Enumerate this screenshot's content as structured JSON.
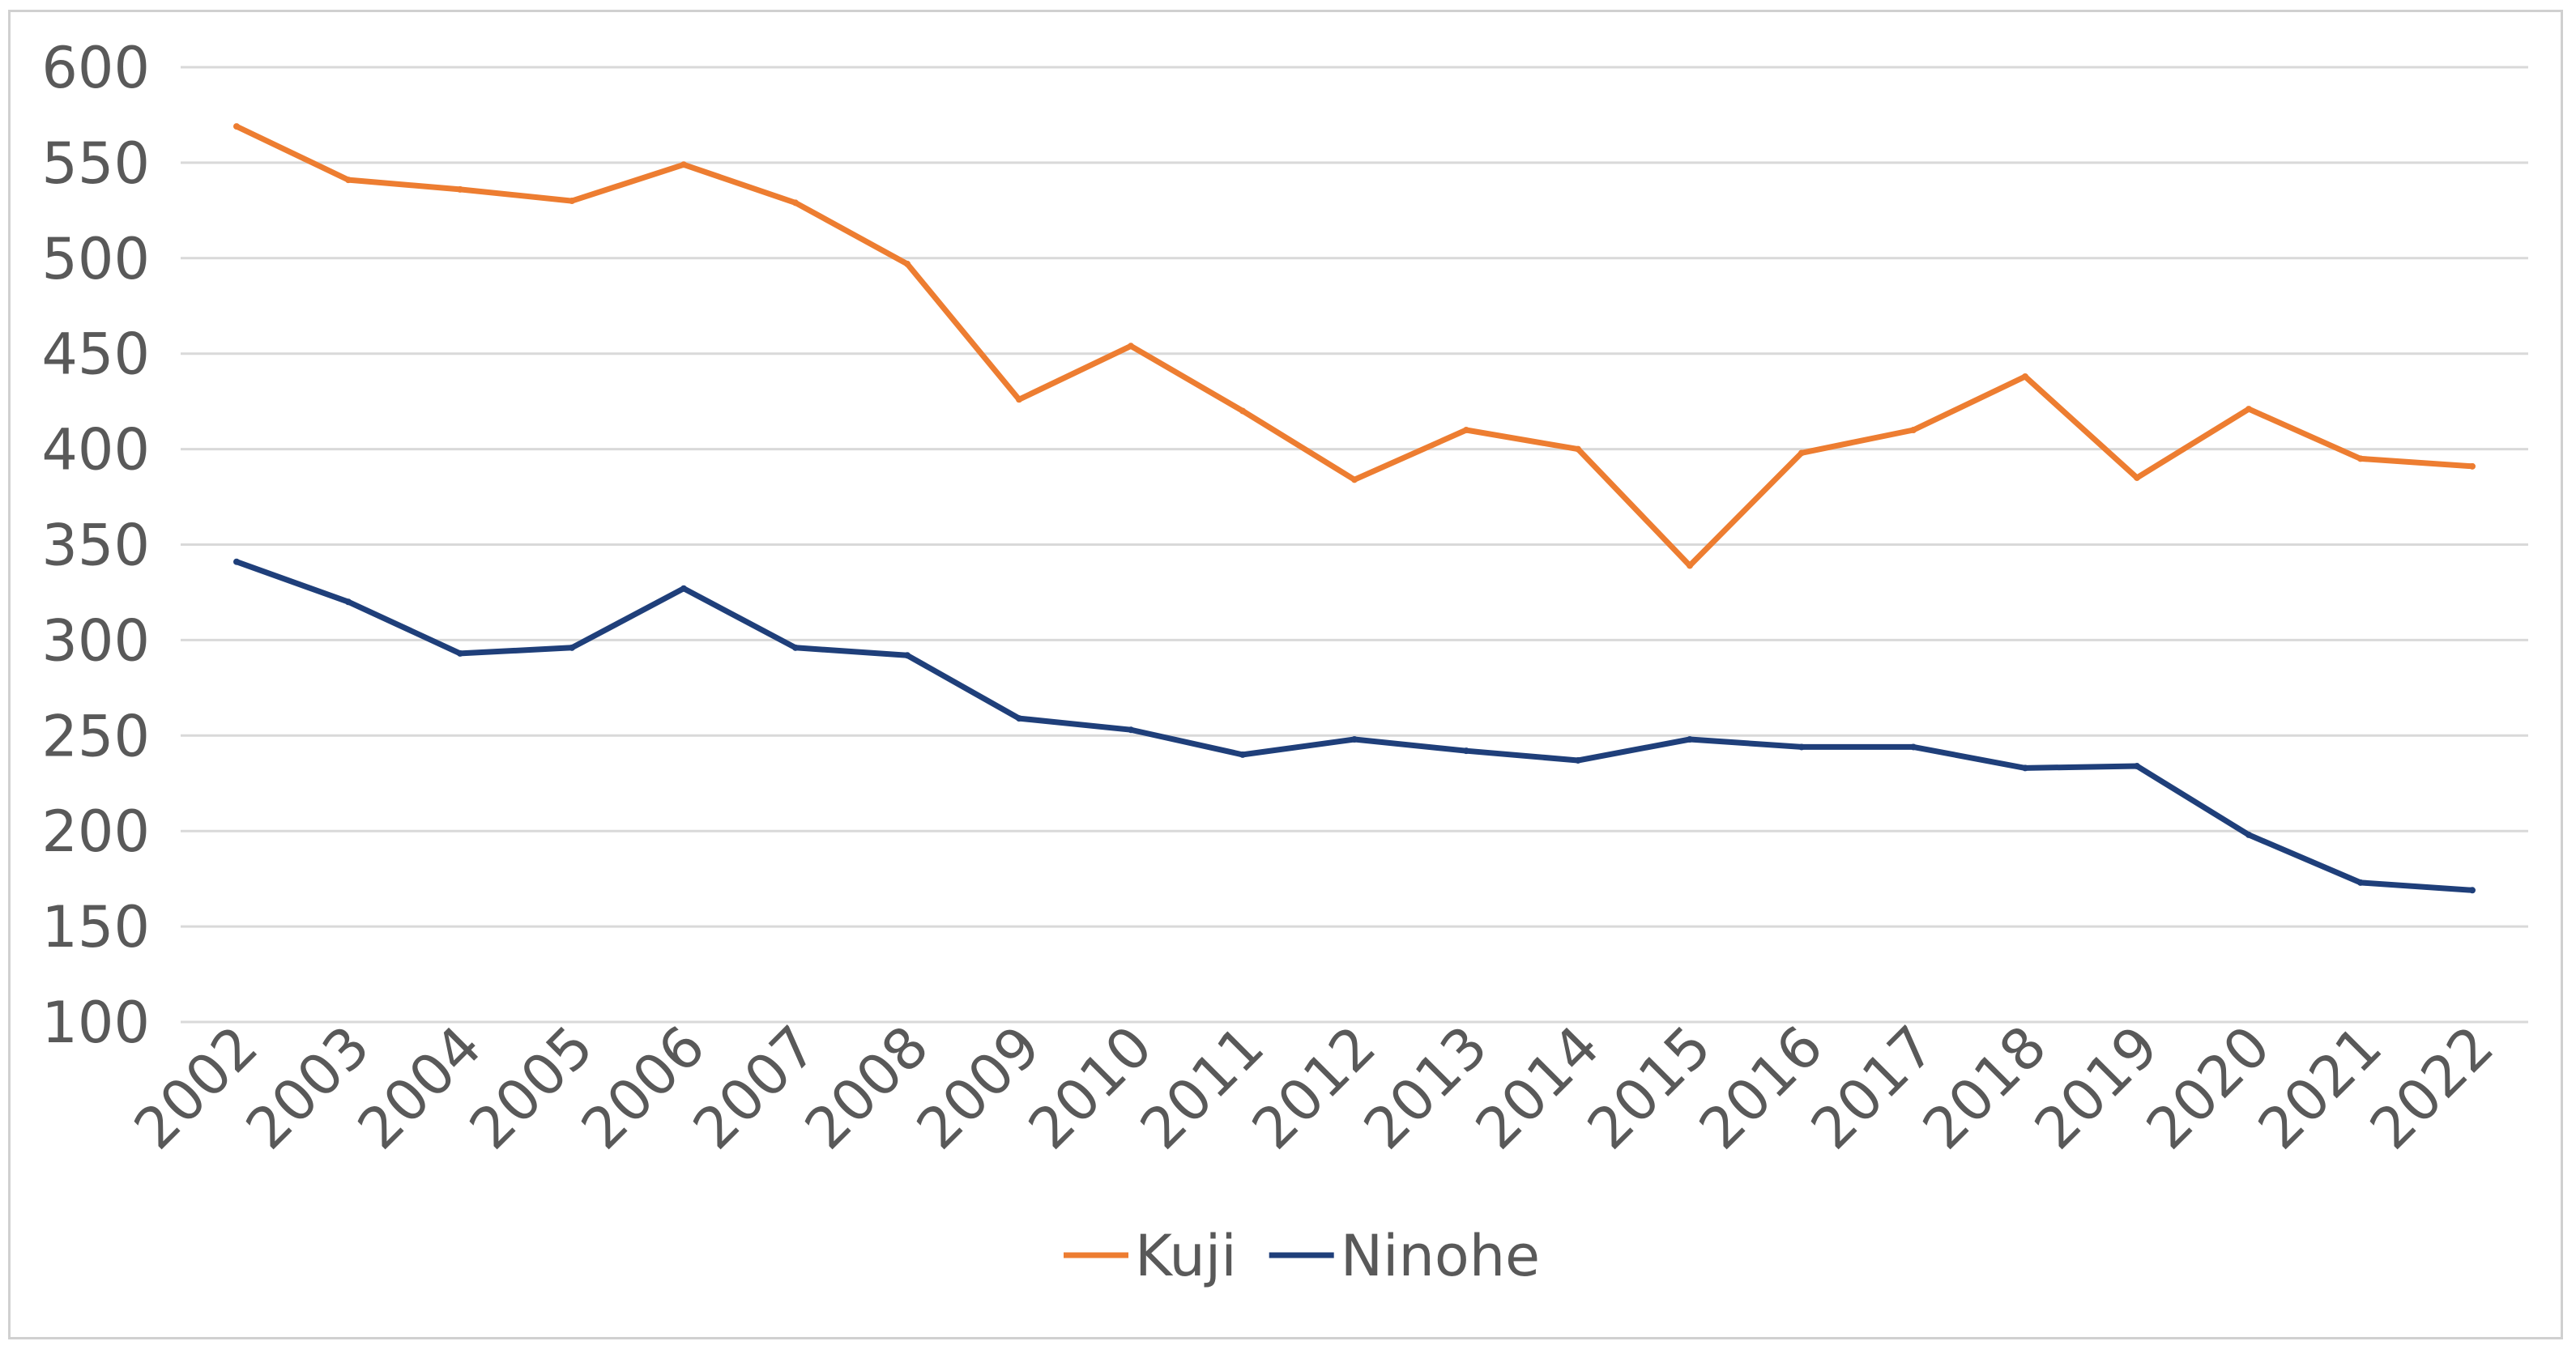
{
  "chart_data": {
    "type": "line",
    "title": "",
    "xlabel": "",
    "ylabel": "",
    "x": [
      "2002",
      "2003",
      "2004",
      "2005",
      "2006",
      "2007",
      "2008",
      "2009",
      "2010",
      "2011",
      "2012",
      "2013",
      "2014",
      "2015",
      "2016",
      "2017",
      "2018",
      "2019",
      "2020",
      "2021",
      "2022"
    ],
    "y_ticks": [
      600,
      550,
      500,
      450,
      400,
      350,
      300,
      250,
      200,
      150,
      100
    ],
    "ylim": [
      100,
      600
    ],
    "grid": true,
    "legend_position": "bottom",
    "series": [
      {
        "name": "Kuji",
        "color": "#ed7d31",
        "values": [
          569,
          541,
          536,
          530,
          549,
          529,
          497,
          426,
          454,
          420,
          384,
          410,
          400,
          339,
          398,
          410,
          438,
          385,
          421,
          395,
          391
        ]
      },
      {
        "name": "Ninohe",
        "color": "#1f3f7a",
        "values": [
          341,
          320,
          293,
          296,
          327,
          296,
          292,
          259,
          253,
          240,
          248,
          242,
          237,
          248,
          244,
          244,
          233,
          234,
          198,
          173,
          169
        ]
      }
    ]
  }
}
